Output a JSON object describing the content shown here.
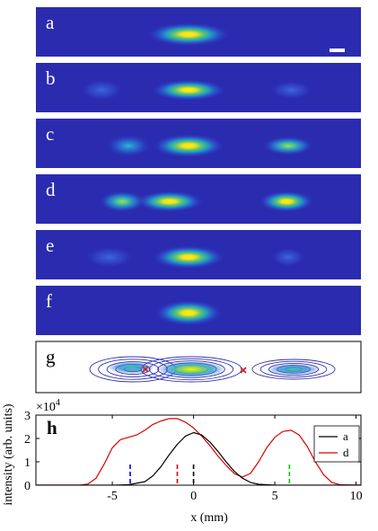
{
  "panels": [
    {
      "letter": "a",
      "blobs": [
        {
          "x": 0,
          "w": 3.9,
          "h": 0.55,
          "amp": 1.0
        }
      ]
    },
    {
      "letter": "b",
      "blobs": [
        {
          "x": 0,
          "w": 3.5,
          "h": 0.5,
          "amp": 1.0
        },
        {
          "x": -5.5,
          "w": 2.0,
          "h": 0.5,
          "amp": 0.12
        },
        {
          "x": 6.5,
          "w": 2.0,
          "h": 0.45,
          "amp": 0.18
        }
      ]
    },
    {
      "letter": "c",
      "blobs": [
        {
          "x": 0,
          "w": 3.4,
          "h": 0.55,
          "amp": 1.0
        },
        {
          "x": -3.8,
          "w": 2.2,
          "h": 0.55,
          "amp": 0.45
        },
        {
          "x": 6.3,
          "w": 2.4,
          "h": 0.45,
          "amp": 0.6
        }
      ]
    },
    {
      "letter": "d",
      "blobs": [
        {
          "x": -1.2,
          "w": 3.2,
          "h": 0.5,
          "amp": 0.95
        },
        {
          "x": -4.2,
          "w": 2.2,
          "h": 0.5,
          "amp": 0.65
        },
        {
          "x": 6.2,
          "w": 2.6,
          "h": 0.5,
          "amp": 0.95
        }
      ]
    },
    {
      "letter": "e",
      "blobs": [
        {
          "x": 0,
          "w": 3.4,
          "h": 0.55,
          "amp": 1.0
        },
        {
          "x": -5.0,
          "w": 2.3,
          "h": 0.5,
          "amp": 0.18
        },
        {
          "x": 6.3,
          "w": 1.6,
          "h": 0.45,
          "amp": 0.1
        }
      ]
    },
    {
      "letter": "f",
      "blobs": [
        {
          "x": 0,
          "w": 3.2,
          "h": 0.6,
          "amp": 1.0
        }
      ]
    }
  ],
  "contour_panel": {
    "letter": "g",
    "marker_color": "#cc2222",
    "outline_color": "#3333aa"
  },
  "profile_panel": {
    "letter": "h",
    "exponent_label": "×10",
    "exponent_power": "4",
    "chart_data": {
      "type": "line",
      "xlabel": "x (mm)",
      "ylabel": "intensity (arb. units)",
      "xlim": [
        -9.7,
        10.3
      ],
      "ylim": [
        0,
        3
      ],
      "x_ticks": [
        -5,
        0,
        5,
        10
      ],
      "y_ticks": [
        0,
        1,
        2,
        3
      ],
      "series": [
        {
          "name": "a",
          "color": "#000000",
          "x": [
            -9.7,
            -6,
            -5,
            -4,
            -3,
            -2.5,
            -2,
            -1.5,
            -1,
            -0.5,
            0,
            0.5,
            1,
            1.5,
            2,
            2.5,
            3,
            3.5,
            4,
            5,
            6,
            10.3
          ],
          "y": [
            0,
            0,
            0,
            0.02,
            0.15,
            0.4,
            0.8,
            1.3,
            1.75,
            2.1,
            2.25,
            2.15,
            1.85,
            1.45,
            1.0,
            0.6,
            0.3,
            0.12,
            0.04,
            0,
            0,
            0
          ]
        },
        {
          "name": "d",
          "color": "#dd0000",
          "x": [
            -9.7,
            -7,
            -6.5,
            -6,
            -5.5,
            -5,
            -4.5,
            -4,
            -3.5,
            -3,
            -2.5,
            -2,
            -1.5,
            -1,
            -0.5,
            0,
            0.5,
            1,
            1.5,
            2,
            2.5,
            3,
            3.5,
            4,
            4.5,
            5,
            5.5,
            6,
            6.5,
            7,
            7.5,
            8,
            8.5,
            9,
            10.3
          ],
          "y": [
            0,
            0,
            0.05,
            0.3,
            0.9,
            1.6,
            1.95,
            2.05,
            2.15,
            2.35,
            2.6,
            2.75,
            2.85,
            2.85,
            2.7,
            2.45,
            2.1,
            1.7,
            1.25,
            0.85,
            0.5,
            0.35,
            0.5,
            1.0,
            1.6,
            2.05,
            2.3,
            2.35,
            2.15,
            1.65,
            1.0,
            0.45,
            0.12,
            0.02,
            0
          ]
        }
      ],
      "markers": [
        {
          "x": -3.9,
          "color": "#0000dd"
        },
        {
          "x": -1.0,
          "color": "#dd0000"
        },
        {
          "x": 0.0,
          "color": "#000000"
        },
        {
          "x": 5.9,
          "color": "#00cc00"
        }
      ]
    }
  },
  "colors": {
    "background": "#2b2bb0",
    "peak": "#ffee00"
  }
}
